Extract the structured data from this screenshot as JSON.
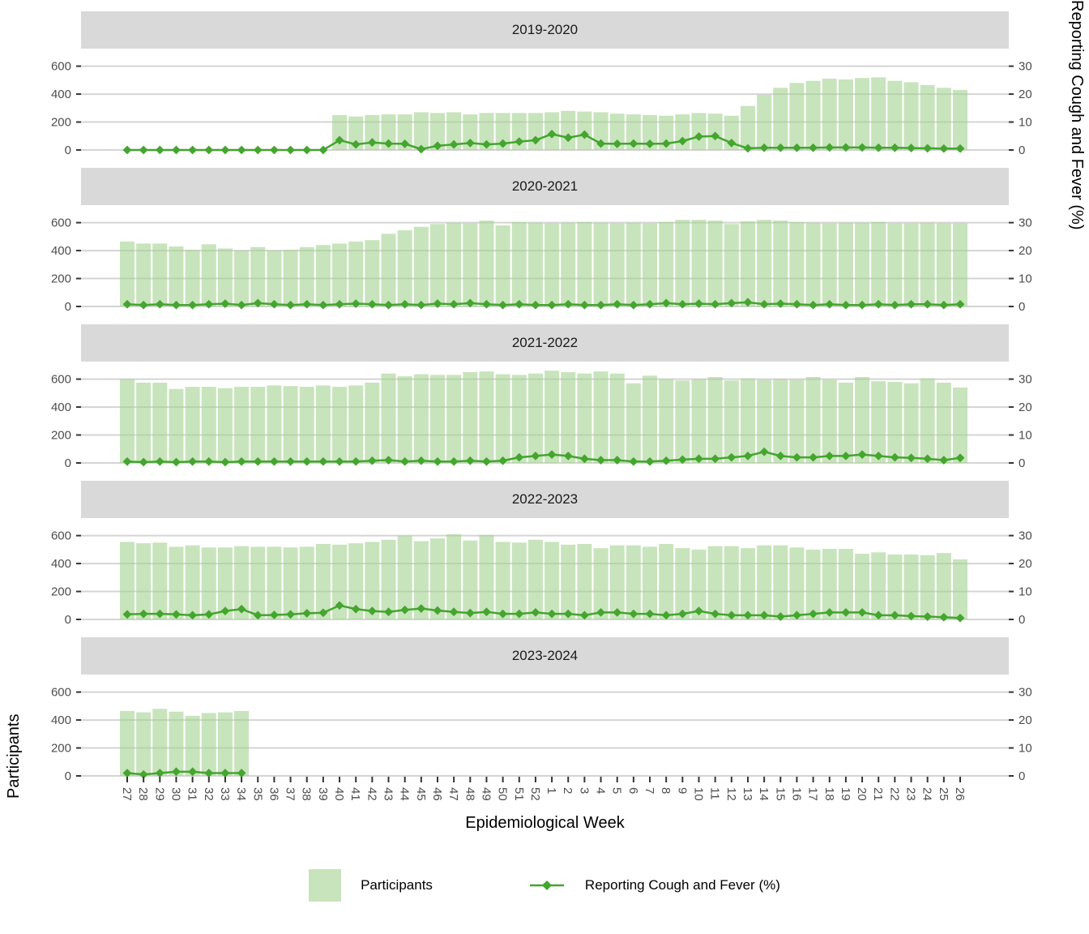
{
  "figure": {
    "left_axis_title": "Participants",
    "right_axis_title": "Reporting Cough and Fever (%)",
    "x_axis_title": "Epidemiological Week",
    "left_ticks": [
      0,
      200,
      400,
      600
    ],
    "right_ticks": [
      0,
      10,
      20,
      30
    ]
  },
  "legend": {
    "participants_label": "Participants",
    "line_label": "Reporting Cough and Fever (%)"
  },
  "colors": {
    "bar_fill": "#a3d28f",
    "bar_opacity": 0.6,
    "line": "#44a52f",
    "strip_bg": "#d9d9d9",
    "strip_text": "#1a1a1a",
    "gridline": "#d4d4d4",
    "axis_text": "#4d4d4d",
    "tick_mark": "#333333"
  },
  "chart_data": {
    "type": "bar+line",
    "facet_variable": "season",
    "xlabel": "Epidemiological Week",
    "ylabel_left": "Participants",
    "ylabel_right": "Reporting Cough and Fever (%)",
    "ylim_left": [
      0,
      600
    ],
    "ylim_right": [
      0,
      30
    ],
    "grid": "major-horizontal",
    "legend_position": "bottom",
    "weeks": [
      "27",
      "28",
      "29",
      "30",
      "31",
      "32",
      "33",
      "34",
      "35",
      "36",
      "37",
      "38",
      "39",
      "40",
      "41",
      "42",
      "43",
      "44",
      "45",
      "46",
      "47",
      "48",
      "49",
      "50",
      "51",
      "52",
      "1",
      "2",
      "3",
      "4",
      "5",
      "6",
      "7",
      "8",
      "9",
      "10",
      "11",
      "12",
      "13",
      "14",
      "15",
      "16",
      "17",
      "18",
      "19",
      "20",
      "21",
      "22",
      "23",
      "24",
      "25",
      "26"
    ],
    "facets": [
      {
        "label": "2019-2020",
        "participants": [
          0,
          0,
          0,
          0,
          0,
          0,
          0,
          0,
          0,
          0,
          0,
          0,
          0,
          250,
          240,
          250,
          255,
          255,
          270,
          265,
          270,
          255,
          265,
          265,
          265,
          265,
          270,
          280,
          275,
          270,
          260,
          255,
          250,
          245,
          255,
          265,
          260,
          245,
          315,
          395,
          445,
          480,
          495,
          510,
          505,
          515,
          520,
          495,
          485,
          465,
          445,
          430
        ],
        "pct": [
          0,
          0,
          0,
          0,
          0,
          0,
          0,
          0,
          0,
          0,
          0,
          0,
          0,
          3.5,
          2,
          2.7,
          2.3,
          2.2,
          0.3,
          1.5,
          2,
          2.5,
          2,
          2.3,
          3,
          3.5,
          5.7,
          4.4,
          5.5,
          2.3,
          2.2,
          2.3,
          2.2,
          2.3,
          3.2,
          4.8,
          5,
          2.5,
          0.6,
          0.8,
          0.8,
          0.8,
          0.8,
          0.9,
          0.9,
          0.9,
          0.8,
          0.8,
          0.7,
          0.6,
          0.5,
          0.5
        ]
      },
      {
        "label": "2020-2021",
        "participants": [
          465,
          450,
          450,
          430,
          405,
          445,
          415,
          400,
          425,
          400,
          405,
          425,
          440,
          450,
          465,
          475,
          520,
          545,
          570,
          590,
          600,
          595,
          615,
          580,
          605,
          600,
          595,
          600,
          605,
          600,
          595,
          600,
          595,
          605,
          620,
          620,
          615,
          590,
          610,
          620,
          615,
          605,
          600,
          595,
          600,
          600,
          605,
          595,
          595,
          600,
          595,
          595
        ],
        "pct": [
          0.8,
          0.5,
          0.8,
          0.5,
          0.5,
          0.8,
          1.0,
          0.5,
          1.2,
          0.8,
          0.5,
          0.8,
          0.5,
          0.8,
          1.0,
          0.8,
          0.5,
          0.8,
          0.5,
          1.0,
          0.8,
          1.2,
          0.8,
          0.5,
          0.8,
          0.5,
          0.5,
          0.8,
          0.5,
          0.5,
          0.8,
          0.5,
          0.8,
          1.2,
          0.8,
          1.0,
          0.8,
          1.2,
          1.5,
          0.8,
          1.0,
          0.8,
          0.5,
          0.8,
          0.5,
          0.5,
          0.8,
          0.5,
          0.8,
          0.8,
          0.5,
          0.8
        ]
      },
      {
        "label": "2021-2022",
        "participants": [
          600,
          575,
          575,
          530,
          545,
          545,
          535,
          545,
          545,
          555,
          550,
          545,
          555,
          545,
          555,
          575,
          640,
          620,
          635,
          630,
          630,
          650,
          655,
          635,
          630,
          640,
          660,
          650,
          640,
          655,
          640,
          570,
          625,
          600,
          590,
          600,
          615,
          590,
          605,
          595,
          600,
          595,
          615,
          595,
          575,
          615,
          585,
          580,
          570,
          605,
          575,
          540
        ],
        "pct": [
          0.5,
          0.3,
          0.5,
          0.3,
          0.5,
          0.5,
          0.3,
          0.5,
          0.5,
          0.5,
          0.5,
          0.5,
          0.5,
          0.5,
          0.5,
          0.8,
          1.0,
          0.5,
          0.8,
          0.5,
          0.5,
          0.8,
          0.5,
          0.8,
          2.0,
          2.5,
          3,
          2.5,
          1.5,
          1,
          1,
          0.5,
          0.5,
          0.8,
          1.2,
          1.5,
          1.5,
          2,
          2.5,
          4,
          2.5,
          2,
          2,
          2.5,
          2.5,
          3,
          2.5,
          2,
          1.8,
          1.5,
          1,
          1.8
        ]
      },
      {
        "label": "2022-2023",
        "participants": [
          555,
          545,
          550,
          520,
          530,
          515,
          515,
          525,
          520,
          520,
          515,
          520,
          540,
          535,
          545,
          555,
          570,
          600,
          560,
          580,
          610,
          565,
          605,
          555,
          550,
          570,
          555,
          535,
          540,
          510,
          530,
          530,
          520,
          540,
          510,
          500,
          525,
          525,
          510,
          530,
          530,
          515,
          500,
          505,
          505,
          470,
          480,
          465,
          465,
          460,
          475,
          430
        ],
        "pct": [
          1.8,
          2,
          2,
          1.8,
          1.5,
          1.8,
          3,
          3.7,
          1.5,
          1.6,
          1.8,
          2.2,
          2.4,
          5,
          3.7,
          3,
          2.7,
          3.4,
          3.9,
          3.2,
          2.7,
          2.3,
          2.7,
          2,
          2,
          2.5,
          2,
          2,
          1.5,
          2.5,
          2.5,
          2,
          2,
          1.5,
          2,
          3,
          2,
          1.5,
          1.5,
          1.5,
          1,
          1.5,
          2,
          2.5,
          2.5,
          2.5,
          1.5,
          1.5,
          1.2,
          1,
          0.8,
          0.5
        ]
      },
      {
        "label": "2023-2024",
        "participants": [
          465,
          455,
          480,
          460,
          430,
          450,
          455,
          465,
          null,
          null,
          null,
          null,
          null,
          null,
          null,
          null,
          null,
          null,
          null,
          null,
          null,
          null,
          null,
          null,
          null,
          null,
          null,
          null,
          null,
          null,
          null,
          null,
          null,
          null,
          null,
          null,
          null,
          null,
          null,
          null,
          null,
          null,
          null,
          null,
          null,
          null,
          null,
          null,
          null,
          null,
          null,
          null
        ],
        "pct": [
          1,
          0.5,
          1,
          1.5,
          1.5,
          1,
          1,
          1,
          null,
          null,
          null,
          null,
          null,
          null,
          null,
          null,
          null,
          null,
          null,
          null,
          null,
          null,
          null,
          null,
          null,
          null,
          null,
          null,
          null,
          null,
          null,
          null,
          null,
          null,
          null,
          null,
          null,
          null,
          null,
          null,
          null,
          null,
          null,
          null,
          null,
          null,
          null,
          null,
          null,
          null,
          null,
          null
        ]
      }
    ]
  }
}
